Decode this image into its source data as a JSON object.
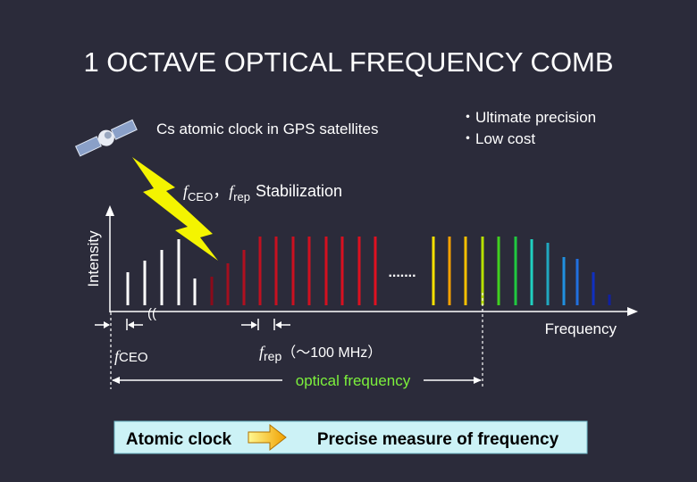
{
  "header": {
    "title": "1 OCTAVE OPTICAL FREQUENCY COMB"
  },
  "satellite_label": "Cs atomic clock in GPS satellites",
  "bullets": [
    "・Ultimate precision",
    "・Low cost"
  ],
  "stabilization": {
    "f1": "f",
    "sub1": "CEO",
    "sep": "，",
    "f2": "f",
    "sub2": "rep",
    "text": "Stabilization"
  },
  "axes": {
    "y_label": "Intensity",
    "x_label": "Frequency"
  },
  "fceo_label": {
    "f": "f",
    "sub": "CEO"
  },
  "frep_label": {
    "f": "f",
    "sub": "rep",
    "text": "（～100 MHz）"
  },
  "optical_frequency": "optical frequency",
  "footer": {
    "left": "Atomic clock",
    "right": "Precise measure of frequency"
  }
}
